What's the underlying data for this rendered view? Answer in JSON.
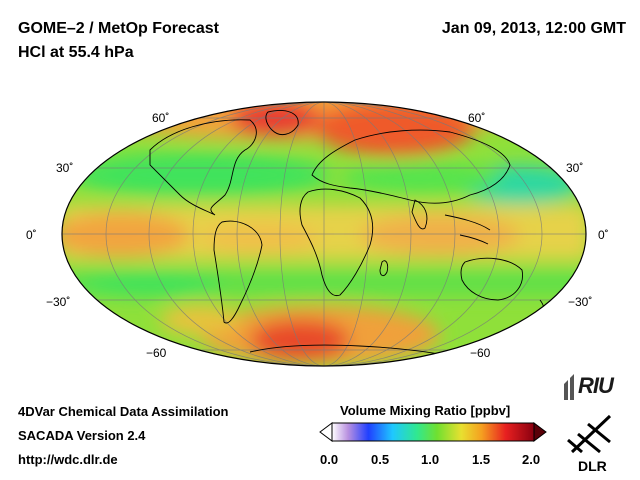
{
  "header": {
    "title_line1": "GOME–2 / MetOp Forecast",
    "title_line2": "HCl at 55.4 hPa",
    "datetime": "Jan 09, 2013, 12:00 GMT"
  },
  "map": {
    "projection": "Mollweide",
    "lat_labels": {
      "left": [
        "60˚",
        "30˚",
        "0˚",
        "−30˚",
        "−60"
      ],
      "right": [
        "60˚",
        "30˚",
        "0˚",
        "−30˚",
        "−60"
      ]
    },
    "colors": {
      "background_field": "#8fe03a",
      "high": "#e81818",
      "mid": "#f5d040",
      "low": "#2de858"
    }
  },
  "footer": {
    "line1": "4DVar Chemical Data Assimilation",
    "line2": "SACADA Version 2.4",
    "line3": "http://wdc.dlr.de"
  },
  "colorbar": {
    "title": "Volume Mixing Ratio [ppbv]",
    "ticks": [
      "0.0",
      "0.5",
      "1.0",
      "1.5",
      "2.0"
    ],
    "min": 0.0,
    "max": 2.0
  },
  "logos": {
    "riu": "RIU",
    "dlr": "DLR"
  }
}
